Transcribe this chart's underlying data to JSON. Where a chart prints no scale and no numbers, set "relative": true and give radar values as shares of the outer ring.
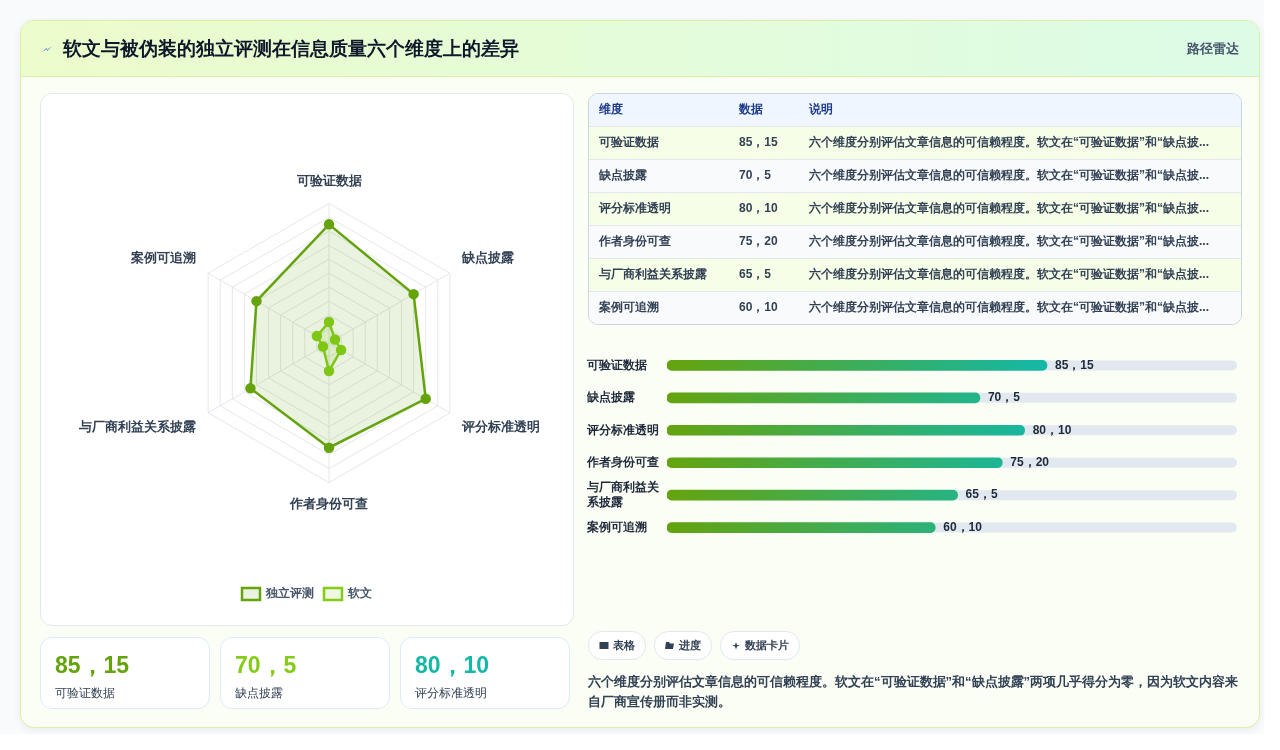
{
  "chart_data": [
    {
      "type": "radar",
      "title": "软文与被伪装的独立评测在信息质量六个维度上的差异",
      "annotations": [
        "路径雷达"
      ],
      "categories": [
        "可验证数据",
        "缺点披露",
        "评分标准透明",
        "作者身份可查",
        "与厂商利益关系披露",
        "案例可追溯"
      ],
      "relative": true,
      "legend": "bottom",
      "marker": "circle",
      "grid": true,
      "series": [
        {
          "name": "独立评测",
          "color": "#65a30d",
          "values": [
            0.85,
            0.7,
            0.8,
            0.75,
            0.65,
            0.6
          ]
        },
        {
          "name": "软文",
          "color": "#84cc16",
          "values": [
            0.15,
            0.05,
            0.1,
            0.2,
            0.05,
            0.1
          ]
        }
      ]
    },
    {
      "type": "other",
      "categories": [
        "维度",
        "数据",
        "说明"
      ],
      "y_categories": [
        "可验证数据",
        "缺点披露",
        "评分标准透明",
        "作者身份可查",
        "与厂商利益关系披露",
        "案例可追溯"
      ],
      "cell_labels": [
        [
          "85，15",
          "六个维度分别评估文章信息的可信赖程度。软文在“可验证数据”和“缺点披..."
        ],
        [
          "70，5",
          "六个维度分别评估文章信息的可信赖程度。软文在“可验证数据”和“缺点披..."
        ],
        [
          "80，10",
          "六个维度分别评估文章信息的可信赖程度。软文在“可验证数据”和“缺点披..."
        ],
        [
          "75，20",
          "六个维度分别评估文章信息的可信赖程度。软文在“可验证数据”和“缺点披..."
        ],
        [
          "65，5",
          "六个维度分别评估文章信息的可信赖程度。软文在“可验证数据”和“缺点披..."
        ],
        [
          "60，10",
          "六个维度分别评估文章信息的可信赖程度。软文在“可验证数据”和“缺点披..."
        ]
      ]
    },
    {
      "type": "bar",
      "orientation": "horizontal",
      "categories": [
        "可验证数据",
        "缺点披露",
        "评分标准透明",
        "作者身份可查",
        "与厂商利益关系披露",
        "案例可追溯"
      ],
      "values": [
        85,
        70,
        80,
        75,
        65,
        60
      ],
      "value_labels": [
        "85，15",
        "70，5",
        "80，10",
        "75，20",
        "65，5",
        "60，10"
      ],
      "color": "#65a30d",
      "tick_labels": "y"
    },
    {
      "type": "other",
      "categories": [
        "可验证数据",
        "缺点披露",
        "评分标准透明"
      ],
      "value_labels": [
        "85，15",
        "70，5",
        "80，10"
      ]
    },
    {
      "type": "other",
      "annotations": [
        "表格",
        "进度",
        "数据卡片",
        "六个维度分别评估文章信息的可信赖程度。软文在“可验证数据”和“缺点披露”两项几乎得分为零，因为软文内容来自厂商宣传册而非实测。"
      ]
    }
  ]
}
